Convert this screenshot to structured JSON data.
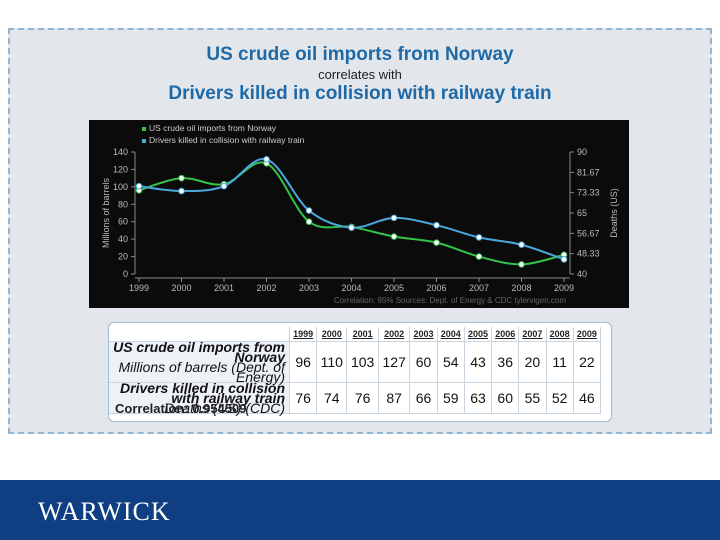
{
  "title_line1": "US crude oil imports from Norway",
  "title_line2": "correlates with",
  "title_line3": "Drivers killed in collision with railway train",
  "logo_text": "WARWICK",
  "colors": {
    "oil": "#35c24a",
    "deaths": "#4aa8dd",
    "title": "#1f6aa6",
    "footer": "#0f3e82"
  },
  "chart_data": {
    "type": "line",
    "x": [
      1999,
      2000,
      2001,
      2002,
      2003,
      2004,
      2005,
      2006,
      2007,
      2008,
      2009
    ],
    "series": [
      {
        "name": "US crude oil imports from Norway",
        "axis": "left",
        "color": "#35c24a",
        "values": [
          96,
          110,
          103,
          127,
          60,
          54,
          43,
          36,
          20,
          11,
          22
        ]
      },
      {
        "name": "Drivers killed in collision with railway train",
        "axis": "right",
        "color": "#4aa8dd",
        "values": [
          76,
          74,
          76,
          87,
          66,
          59,
          63,
          60,
          55,
          52,
          46
        ]
      }
    ],
    "ylabel_left": "Millions of barrels",
    "ylabel_right": "Deaths (US)",
    "ylim_left": [
      0,
      140
    ],
    "ylim_right": [
      40,
      90
    ],
    "left_ticks": [
      "0",
      "20",
      "40",
      "60",
      "80",
      "100",
      "120",
      "140"
    ],
    "right_ticks": [
      "40",
      "48.33",
      "56.67",
      "65",
      "73.33",
      "81.67",
      "90"
    ],
    "x_ticks": [
      "1999",
      "2000",
      "2001",
      "2002",
      "2003",
      "2004",
      "2005",
      "2006",
      "2007",
      "2008",
      "2009"
    ],
    "legend_position": "top-left",
    "grid": false,
    "footer_note": "Correlation: 95%    Sources: Dept. of Energy & CDC   tylervigen.com"
  },
  "table": {
    "years": [
      "1999",
      "2000",
      "2001",
      "2002",
      "2003",
      "2004",
      "2005",
      "2006",
      "2007",
      "2008",
      "2009"
    ],
    "rows": [
      {
        "label": "US crude oil imports from Norway",
        "sublabel": "Millions of barrels (Dept. of Energy)",
        "values": [
          "96",
          "110",
          "103",
          "127",
          "60",
          "54",
          "43",
          "36",
          "20",
          "11",
          "22"
        ]
      },
      {
        "label": "Drivers killed in collision with railway train",
        "sublabel": "Deaths (US) (CDC)",
        "values": [
          "76",
          "74",
          "76",
          "87",
          "66",
          "59",
          "63",
          "60",
          "55",
          "52",
          "46"
        ]
      }
    ],
    "correlation": "Correlation: 0.954509"
  }
}
